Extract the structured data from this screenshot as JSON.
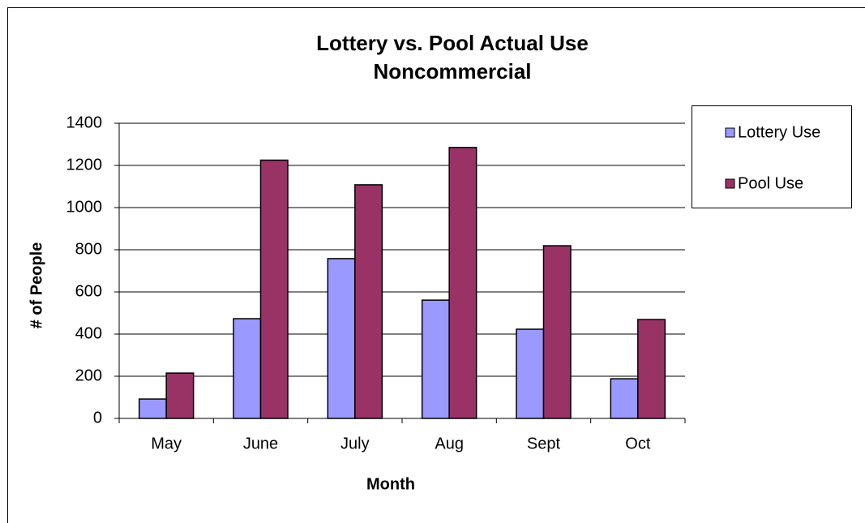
{
  "chart_data": {
    "type": "bar",
    "title": "Lottery vs. Pool Actual Use",
    "subtitle": "Noncommercial",
    "x_label": "Month",
    "y_label": "# of People",
    "categories": [
      "May",
      "June",
      "July",
      "Aug",
      "Sept",
      "Oct"
    ],
    "series": [
      {
        "name": "Lottery Use",
        "color": "#9999ff",
        "values": [
          92,
          473,
          758,
          561,
          423,
          188
        ]
      },
      {
        "name": "Pool Use",
        "color": "#993366",
        "values": [
          215,
          1225,
          1108,
          1285,
          819,
          469
        ]
      }
    ],
    "ylim": [
      0,
      1400
    ],
    "yticks": [
      0,
      200,
      400,
      600,
      800,
      1000,
      1200,
      1400
    ],
    "grid": true,
    "legend": "right"
  }
}
